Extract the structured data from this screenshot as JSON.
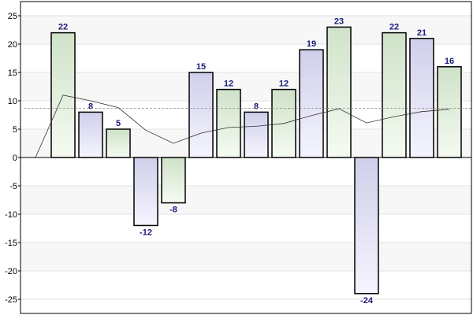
{
  "chart_data": {
    "type": "bar",
    "title": "",
    "xlabel": "",
    "ylabel": "",
    "ylim": [
      -27,
      27
    ],
    "yticks": [
      -25,
      -20,
      -15,
      -10,
      -5,
      0,
      5,
      10,
      15,
      20,
      25
    ],
    "grid": true,
    "legend": "none",
    "values": [
      22,
      8,
      5,
      -12,
      -8,
      15,
      12,
      8,
      12,
      19,
      23,
      -24,
      22,
      21,
      16
    ],
    "bar_fill_styles": [
      "green",
      "blue",
      "green",
      "blue",
      "green",
      "blue",
      "green",
      "blue",
      "green",
      "blue",
      "green",
      "blue",
      "green",
      "blue",
      "green"
    ],
    "trend_line": {
      "type": "line",
      "values": [
        0,
        11,
        10,
        8.8,
        4.8,
        2.5,
        4.3,
        5.3,
        5.5,
        6,
        7.4,
        8.6,
        6.1,
        7.2,
        8.1,
        8.5
      ]
    },
    "reference_line": {
      "y": 8.7,
      "style": "dashed"
    },
    "colors": {
      "bar_border": "#000000",
      "blue_fill_top": "#cfcfea",
      "blue_fill_bottom": "#f5f5ff",
      "green_fill_top": "#cfe2c8",
      "green_fill_bottom": "#f5fbf2",
      "label_text": "#1a1a7a",
      "trend_line": "#333333",
      "reference_line": "#888888",
      "grid": "#e0e0e0",
      "negative_band": "#f0f0f0"
    }
  }
}
